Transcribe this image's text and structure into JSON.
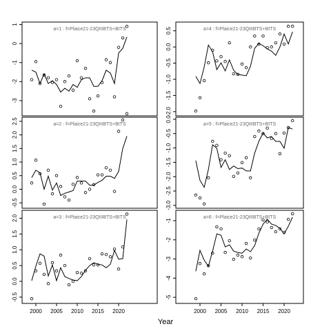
{
  "xlabel": "Year",
  "chart_data": [
    {
      "type": "line",
      "title": "a=1 : f=Plaice21-23QIIIBTS+BITS",
      "x": [
        1999,
        2000,
        2001,
        2002,
        2003,
        2004,
        2005,
        2006,
        2007,
        2008,
        2009,
        2010,
        2011,
        2012,
        2013,
        2014,
        2015,
        2016,
        2017,
        2018,
        2019,
        2020,
        2021,
        2022
      ],
      "series": [
        {
          "type": "scatter",
          "color": "#000000",
          "values": [
            -1.9,
            -0.95,
            -2.1,
            -1.65,
            -1.8,
            -2.05,
            -1.9,
            -3.3,
            -2.0,
            -1.7,
            -2.45,
            -0.9,
            -1.8,
            -1.3,
            -2.9,
            -3.55,
            -2.75,
            -2.05,
            -0.85,
            -1.0,
            -2.8,
            -0.2,
            0.3,
            0.9
          ]
        },
        {
          "type": "line",
          "color": "#000000",
          "values": [
            -1.4,
            -1.5,
            -2.1,
            -1.6,
            -2.1,
            -1.95,
            -2.15,
            -2.55,
            -2.35,
            -2.5,
            -2.15,
            -2.3,
            -1.9,
            -1.8,
            -1.8,
            -2.25,
            -2.25,
            -1.95,
            -1.4,
            -1.55,
            -2.1,
            -0.5,
            -0.25,
            0.35
          ]
        }
      ],
      "xlim": [
        1996.67,
        2029.33
      ],
      "ylim": [
        -3.8,
        1.13
      ],
      "yticks": [
        1,
        0,
        -1,
        -2,
        -3
      ]
    },
    {
      "type": "line",
      "title": "a=2 : f=Plaice21-23QIIIBTS+BITS",
      "x": [
        1999,
        2000,
        2001,
        2002,
        2003,
        2004,
        2005,
        2006,
        2007,
        2008,
        2009,
        2010,
        2011,
        2012,
        2013,
        2014,
        2015,
        2016,
        2017,
        2018,
        2019,
        2020,
        2021,
        2022
      ],
      "series": [
        {
          "type": "scatter",
          "color": "#000000",
          "values": [
            0.23,
            1.07,
            0.57,
            -0.55,
            0.7,
            -0.17,
            0.5,
            0.1,
            -0.28,
            -0.4,
            0.18,
            0.43,
            0.23,
            -0.12,
            0.0,
            0.17,
            0.53,
            0.53,
            0.79,
            0.7,
            -0.08,
            2.13,
            2.55,
            2.78
          ]
        },
        {
          "type": "line",
          "color": "#000000",
          "values": [
            0.43,
            0.7,
            0.6,
            0.0,
            0.48,
            -0.03,
            0.23,
            -0.23,
            -0.15,
            -0.1,
            -0.05,
            0.3,
            0.3,
            0.3,
            0.15,
            0.15,
            0.25,
            0.33,
            0.48,
            0.48,
            0.4,
            0.65,
            1.5,
            1.95
          ]
        }
      ],
      "xlim": [
        1996.67,
        2029.33
      ],
      "ylim": [
        -0.7,
        2.65
      ],
      "yticks": [
        2.5,
        {
          "value": 2,
          "label": "2.0"
        },
        1.5,
        {
          "value": 1,
          "label": "1.0"
        },
        0.5,
        {
          "value": 0,
          "label": "0.0"
        },
        -0.5
      ]
    },
    {
      "type": "line",
      "title": "a=3 : f=Plaice21-23QIIIBTS+BITS",
      "x": [
        1999,
        2000,
        2001,
        2002,
        2003,
        2004,
        2005,
        2006,
        2007,
        2008,
        2009,
        2010,
        2011,
        2012,
        2013,
        2014,
        2015,
        2016,
        2017,
        2018,
        2019,
        2020,
        2021,
        2022
      ],
      "series": [
        {
          "type": "scatter",
          "color": "#000000",
          "values": [
            -0.55,
            0.33,
            0.57,
            0.22,
            -0.07,
            0.59,
            0.33,
            0.83,
            0.5,
            -0.11,
            0.0,
            0.28,
            0.26,
            0.33,
            0.72,
            0.52,
            0.52,
            0.87,
            0.85,
            0.78,
            1.02,
            0.39,
            1.09,
            2.13
          ]
        },
        {
          "type": "line",
          "color": "#000000",
          "values": [
            0.02,
            0.48,
            0.87,
            0.8,
            0.17,
            0.52,
            0.02,
            0.43,
            0.15,
            0.09,
            0.04,
            0.02,
            0.15,
            0.35,
            0.5,
            0.59,
            0.54,
            0.52,
            0.43,
            0.54,
            0.98,
            0.7,
            0.72,
            1.96
          ]
        }
      ],
      "xlim": [
        1996.67,
        2029.33
      ],
      "ylim": [
        -0.7,
        2.25
      ],
      "xticks": [
        2000,
        2005,
        2010,
        2015,
        2020
      ],
      "yticks": [
        {
          "value": 2,
          "label": "2.0"
        },
        1.5,
        {
          "value": 1,
          "label": "1.0"
        },
        0.5,
        {
          "value": 0,
          "label": "0.0"
        },
        -0.5
      ]
    },
    {
      "type": "line",
      "title": "a=4 : f=Plaice21-23QIIIBTS+BITS",
      "x": [
        1999,
        2000,
        2001,
        2002,
        2003,
        2004,
        2005,
        2006,
        2007,
        2008,
        2009,
        2010,
        2011,
        2012,
        2013,
        2014,
        2015,
        2016,
        2017,
        2018,
        2019,
        2020,
        2021,
        2022
      ],
      "series": [
        {
          "type": "scatter",
          "color": "#000000",
          "values": [
            -1.98,
            -1.57,
            -1.04,
            -0.49,
            -0.1,
            -0.43,
            -0.3,
            -0.45,
            0.13,
            -0.83,
            -0.85,
            -0.53,
            -0.64,
            0.0,
            0.34,
            0.09,
            0.34,
            -0.02,
            0.0,
            0.13,
            0.4,
            0.09,
            0.64,
            0.64
          ]
        },
        {
          "type": "line",
          "color": "#000000",
          "values": [
            -0.91,
            -1.13,
            -0.62,
            0.06,
            -0.15,
            -0.7,
            -0.49,
            -0.74,
            -0.4,
            -0.72,
            -0.85,
            -0.87,
            -0.89,
            -0.6,
            -0.04,
            0.11,
            0.04,
            -0.06,
            -0.13,
            -0.26,
            0.0,
            0.4,
            0.09,
            0.47
          ]
        }
      ],
      "xlim": [
        1994.26,
        2024.59
      ],
      "ylim": [
        -2.13,
        0.77
      ],
      "yticks": [
        0.5,
        {
          "value": 0,
          "label": "0.0"
        },
        -0.5,
        {
          "value": -1,
          "label": "-1.0"
        },
        -1.5,
        {
          "value": -2,
          "label": "-2.0"
        }
      ]
    },
    {
      "type": "line",
      "title": "a=5 : f=Plaice21-23QIIIBTS+BITS",
      "x": [
        1999,
        2000,
        2001,
        2002,
        2003,
        2004,
        2005,
        2006,
        2007,
        2008,
        2009,
        2010,
        2011,
        2012,
        2013,
        2014,
        2015,
        2016,
        2017,
        2018,
        2019,
        2020,
        2021,
        2022
      ],
      "series": [
        {
          "type": "scatter",
          "color": "#000000",
          "values": [
            -2.64,
            -2.74,
            -2.95,
            -2.04,
            -0.77,
            -0.91,
            -1.41,
            -1.18,
            -1.27,
            -1.99,
            -1.87,
            -1.51,
            -1.34,
            -2.04,
            -0.6,
            -0.41,
            -0.5,
            -0.31,
            -0.67,
            -0.5,
            -1.2,
            -0.48,
            -0.29,
            -0.05
          ]
        },
        {
          "type": "line",
          "color": "#000000",
          "values": [
            -1.44,
            -2.13,
            -2.37,
            -1.75,
            -0.89,
            -1.01,
            -1.68,
            -1.41,
            -1.75,
            -1.63,
            -1.72,
            -1.7,
            -1.8,
            -1.8,
            -1.18,
            -0.77,
            -0.48,
            -0.65,
            -0.6,
            -0.77,
            -0.77,
            -1.01,
            -0.29,
            -0.34
          ]
        }
      ],
      "xlim": [
        1994.26,
        2024.59
      ],
      "ylim": [
        -3.1,
        0.07
      ],
      "yticks": [
        {
          "value": 0,
          "label": "0.0"
        },
        -0.5,
        {
          "value": -1,
          "label": "-1.0"
        },
        -1.5,
        {
          "value": -2,
          "label": "-2.0"
        },
        -2.5,
        {
          "value": -3,
          "label": "-3.0"
        }
      ]
    },
    {
      "type": "line",
      "title": "a=6 : f=Plaice21-23QIIIBTS+BITS",
      "x": [
        1999,
        2000,
        2001,
        2002,
        2003,
        2004,
        2005,
        2006,
        2007,
        2008,
        2009,
        2010,
        2011,
        2012,
        2013,
        2014,
        2015,
        2016,
        2017,
        2018,
        2019,
        2020,
        2021,
        2022
      ],
      "series": [
        {
          "type": "scatter",
          "color": "#000000",
          "values": [
            -5.07,
            -3.24,
            -3.78,
            -3.35,
            -2.7,
            -1.32,
            -1.43,
            -2.66,
            -2.05,
            -3.02,
            -2.8,
            -2.88,
            -2.19,
            -2.95,
            -2.01,
            -1.43,
            -0.96,
            -1.07,
            -1.36,
            -1.58,
            -1.43,
            -1.61,
            -0.93,
            -0.64
          ]
        },
        {
          "type": "line",
          "color": "#000000",
          "values": [
            -3.64,
            -2.55,
            -3.06,
            -3.38,
            -2.59,
            -1.69,
            -1.76,
            -2.37,
            -2.26,
            -2.59,
            -2.66,
            -2.7,
            -2.48,
            -2.62,
            -2.3,
            -1.65,
            -1.18,
            -0.93,
            -1.18,
            -1.25,
            -1.4,
            -1.69,
            -1.29,
            -0.82
          ]
        }
      ],
      "xlim": [
        1994.26,
        2024.59
      ],
      "ylim": [
        -5.32,
        -0.46
      ],
      "xticks": [
        2000,
        2005,
        2010,
        2015,
        2020
      ],
      "yticks": [
        -1,
        -2,
        -3,
        -4,
        -5
      ]
    }
  ]
}
